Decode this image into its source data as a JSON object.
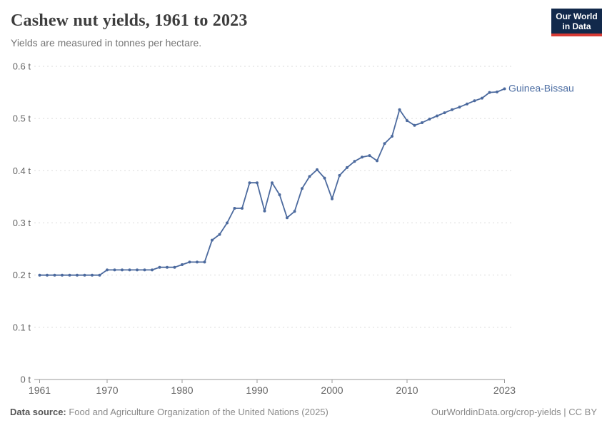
{
  "header": {
    "title": "Cashew nut yields, 1961 to 2023",
    "subtitle": "Yields are measured in tonnes per hectare.",
    "logo_line1": "Our World",
    "logo_line2": "in Data"
  },
  "footer": {
    "source_label": "Data source:",
    "source_text": " Food and Agriculture Organization of the United Nations (2025)",
    "attribution": "OurWorldinData.org/crop-yields | CC BY"
  },
  "colors": {
    "series_line": "#4c6a9e",
    "entity_label": "#4d6ea3",
    "gridline": "#dbdbdb",
    "axis": "#999999",
    "tick_text": "#666666",
    "title_text": "#3d3d3d",
    "subtitle_text": "#757575",
    "logo_bg": "#12294b",
    "logo_accent": "#d73a34"
  },
  "chart_data": {
    "type": "line",
    "title": "Cashew nut yields, 1961 to 2023",
    "ylabel": "tonnes per hectare",
    "xlabel": "",
    "xlim": [
      1961,
      2023
    ],
    "ylim": [
      0,
      0.6
    ],
    "grid": "horizontal-dashed",
    "legend_position": "end-of-line-label",
    "x_ticks": [
      1961,
      1970,
      1980,
      1990,
      2000,
      2010,
      2023
    ],
    "y_ticks": [
      {
        "value": 0,
        "label": "0 t"
      },
      {
        "value": 0.1,
        "label": "0.1 t"
      },
      {
        "value": 0.2,
        "label": "0.2 t"
      },
      {
        "value": 0.3,
        "label": "0.3 t"
      },
      {
        "value": 0.4,
        "label": "0.4 t"
      },
      {
        "value": 0.5,
        "label": "0.5 t"
      },
      {
        "value": 0.6,
        "label": "0.6 t"
      }
    ],
    "series": [
      {
        "name": "Guinea-Bissau",
        "color": "#4c6a9e",
        "x": [
          1961,
          1962,
          1963,
          1964,
          1965,
          1966,
          1967,
          1968,
          1969,
          1970,
          1971,
          1972,
          1973,
          1974,
          1975,
          1976,
          1977,
          1978,
          1979,
          1980,
          1981,
          1982,
          1983,
          1984,
          1985,
          1986,
          1987,
          1988,
          1989,
          1990,
          1991,
          1992,
          1993,
          1994,
          1995,
          1996,
          1997,
          1998,
          1999,
          2000,
          2001,
          2002,
          2003,
          2004,
          2005,
          2006,
          2007,
          2008,
          2009,
          2010,
          2011,
          2012,
          2013,
          2014,
          2015,
          2016,
          2017,
          2018,
          2019,
          2020,
          2021,
          2022,
          2023
        ],
        "values": [
          0.2,
          0.2,
          0.2,
          0.2,
          0.2,
          0.2,
          0.2,
          0.2,
          0.2,
          0.21,
          0.21,
          0.21,
          0.21,
          0.21,
          0.21,
          0.21,
          0.215,
          0.215,
          0.215,
          0.22,
          0.225,
          0.225,
          0.225,
          0.267,
          0.278,
          0.3,
          0.328,
          0.328,
          0.377,
          0.377,
          0.323,
          0.377,
          0.354,
          0.31,
          0.322,
          0.366,
          0.389,
          0.402,
          0.386,
          0.346,
          0.391,
          0.406,
          0.418,
          0.426,
          0.429,
          0.419,
          0.452,
          0.466,
          0.517,
          0.496,
          0.487,
          0.492,
          0.499,
          0.505,
          0.511,
          0.517,
          0.522,
          0.528,
          0.534,
          0.539,
          0.55,
          0.551,
          0.557
        ]
      }
    ]
  }
}
